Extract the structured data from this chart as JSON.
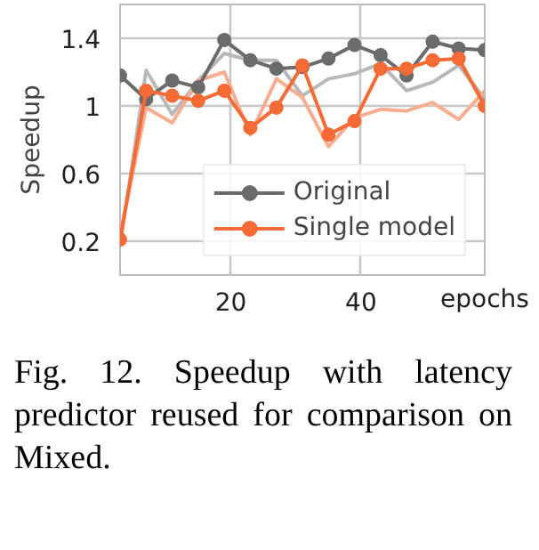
{
  "chart_data": {
    "type": "line",
    "xlabel": "epochs",
    "ylabel": "Speedup",
    "x": [
      3,
      7,
      11,
      15,
      19,
      23,
      27,
      31,
      35,
      39,
      43,
      47,
      51,
      55,
      59
    ],
    "xlim": [
      3,
      59
    ],
    "xticks": [
      20,
      40
    ],
    "ylim": [
      0,
      1.6
    ],
    "yticks": [
      0.2,
      0.6,
      1,
      1.4
    ],
    "grid": true,
    "legend": "bottom right",
    "marker": "circle",
    "line_style": "solid",
    "series": [
      {
        "color": "#b8b8b8",
        "marker": "none",
        "values": [
          0.17,
          1.21,
          0.95,
          1.15,
          1.31,
          1.27,
          1.27,
          1.06,
          1.16,
          1.19,
          1.25,
          1.09,
          1.14,
          1.24,
          1.04
        ]
      },
      {
        "color": "#f9ad90",
        "marker": "none",
        "values": [
          0.24,
          0.99,
          0.9,
          1.15,
          1.2,
          0.83,
          1.16,
          1.05,
          0.76,
          0.93,
          0.98,
          0.97,
          1.02,
          0.92,
          1.09
        ]
      },
      {
        "name": "Original",
        "color": "#6b6b6b",
        "values": [
          1.18,
          1.04,
          1.15,
          1.11,
          1.39,
          1.27,
          1.22,
          1.23,
          1.28,
          1.36,
          1.3,
          1.18,
          1.38,
          1.34,
          1.33
        ]
      },
      {
        "name": "Single model",
        "color": "#f56a35",
        "values": [
          0.21,
          1.09,
          1.06,
          1.03,
          1.09,
          0.87,
          0.99,
          1.24,
          0.83,
          0.91,
          1.22,
          1.22,
          1.27,
          1.28,
          1.0
        ]
      }
    ],
    "annotations": [
      "Fig. 12. Speedup with latency predictor reused for comparison on Mixed."
    ]
  }
}
